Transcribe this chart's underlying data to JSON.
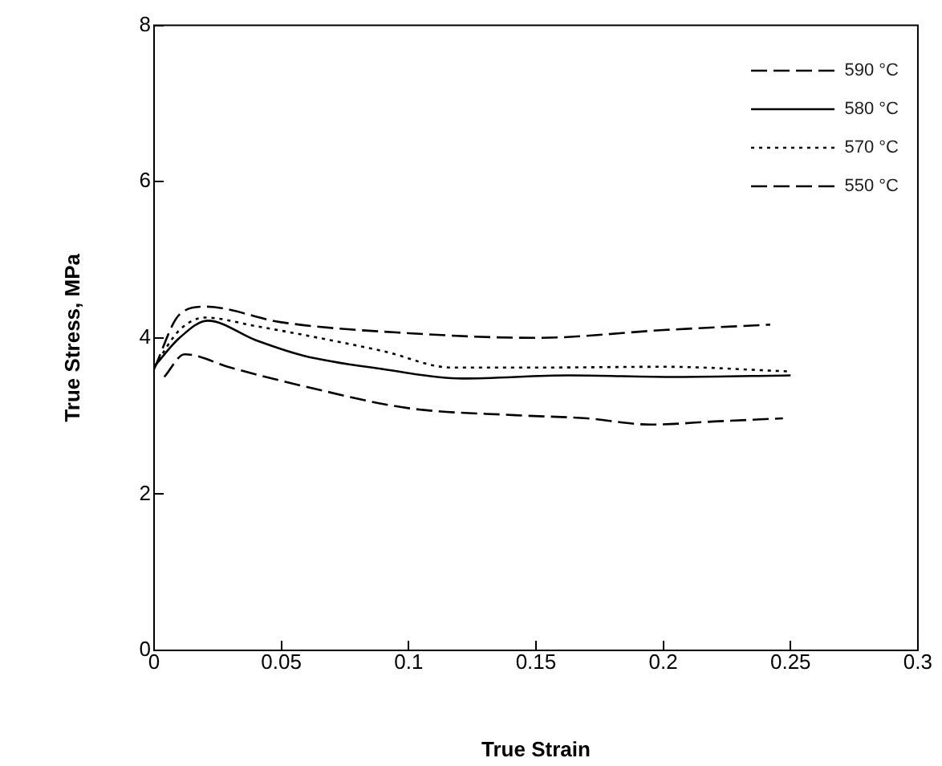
{
  "chart_data": {
    "type": "line",
    "xlabel": "True Strain",
    "ylabel": "True Stress, MPa",
    "xlim": [
      0,
      0.3
    ],
    "xticks": [
      0,
      0.05,
      0.1,
      0.15,
      0.2,
      0.25,
      0.3
    ],
    "ylim": [
      0,
      8
    ],
    "yticks": [
      0,
      2,
      4,
      6,
      8
    ],
    "grid": false,
    "legend": "top right",
    "marker": "none",
    "series": [
      {
        "name": "590 °C",
        "color": "#000000",
        "line_style": "dashed",
        "x": [
          0.004,
          0.012,
          0.03,
          0.059,
          0.1,
          0.142,
          0.17,
          0.195,
          0.22,
          0.247
        ],
        "values": [
          3.5,
          3.79,
          3.62,
          3.38,
          3.1,
          3.01,
          2.97,
          2.89,
          2.93,
          2.97
        ]
      },
      {
        "name": "580 °C",
        "color": "#000000",
        "line_style": "solid",
        "x": [
          0,
          0.01,
          0.021,
          0.04,
          0.059,
          0.09,
          0.121,
          0.163,
          0.205,
          0.25
        ],
        "values": [
          3.63,
          4.0,
          4.22,
          3.97,
          3.77,
          3.6,
          3.48,
          3.52,
          3.5,
          3.52
        ]
      },
      {
        "name": "570 °C",
        "color": "#000000",
        "line_style": "dotted",
        "x": [
          0,
          0.01,
          0.02,
          0.04,
          0.06,
          0.09,
          0.117,
          0.15,
          0.2,
          0.25
        ],
        "values": [
          3.63,
          4.1,
          4.26,
          4.15,
          4.03,
          3.83,
          3.62,
          3.62,
          3.63,
          3.57
        ]
      },
      {
        "name": "550 °C",
        "color": "#000000",
        "line_style": "dashed",
        "x": [
          0,
          0.01,
          0.02,
          0.05,
          0.1,
          0.15,
          0.2,
          0.242
        ],
        "values": [
          3.6,
          4.3,
          4.4,
          4.2,
          4.06,
          4.0,
          4.1,
          4.17
        ]
      }
    ]
  }
}
